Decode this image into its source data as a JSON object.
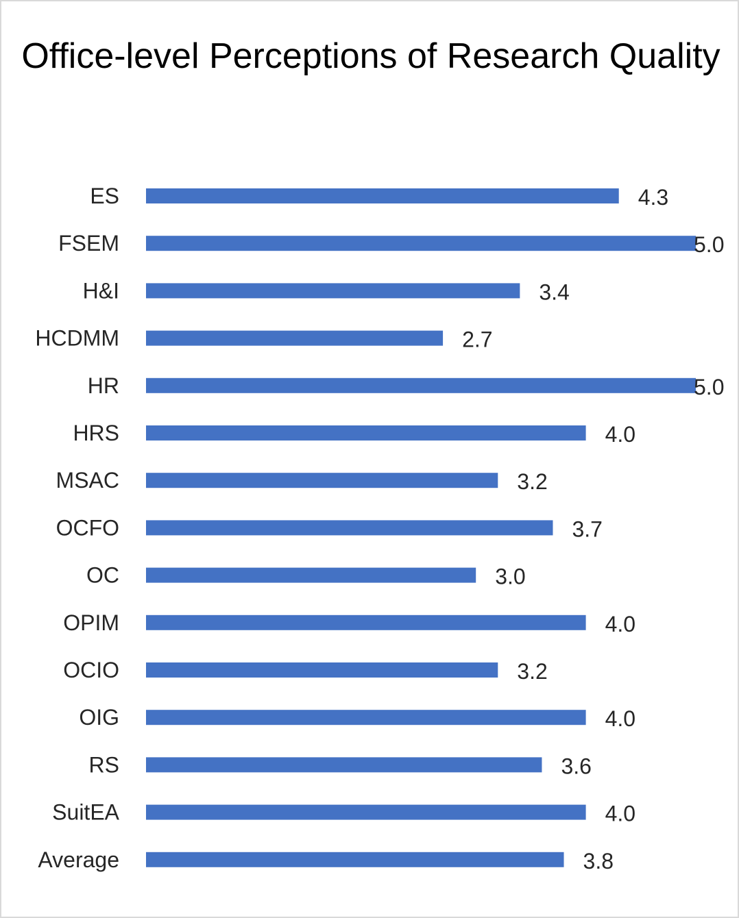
{
  "chart_data": {
    "type": "bar",
    "orientation": "horizontal",
    "title": "Office-level Perceptions of Research Quality",
    "categories": [
      "ES",
      "FSEM",
      "H&I",
      "HCDMM",
      "HR",
      "HRS",
      "MSAC",
      "OCFO",
      "OC",
      "OPIM",
      "OCIO",
      "OIG",
      "RS",
      "SuitEA",
      "Average"
    ],
    "values": [
      4.3,
      5.0,
      3.4,
      2.7,
      5.0,
      4.0,
      3.2,
      3.7,
      3.0,
      4.0,
      3.2,
      4.0,
      3.6,
      4.0,
      3.8
    ],
    "value_labels": [
      "4.3",
      "5.0",
      "3.4",
      "2.7",
      "5.0",
      "4.0",
      "3.2",
      "3.7",
      "3.0",
      "4.0",
      "3.2",
      "4.0",
      "3.6",
      "4.0",
      "3.8"
    ],
    "xlabel": "",
    "ylabel": "",
    "grid": false,
    "legend": "none",
    "bar_color": "#4472C4"
  }
}
